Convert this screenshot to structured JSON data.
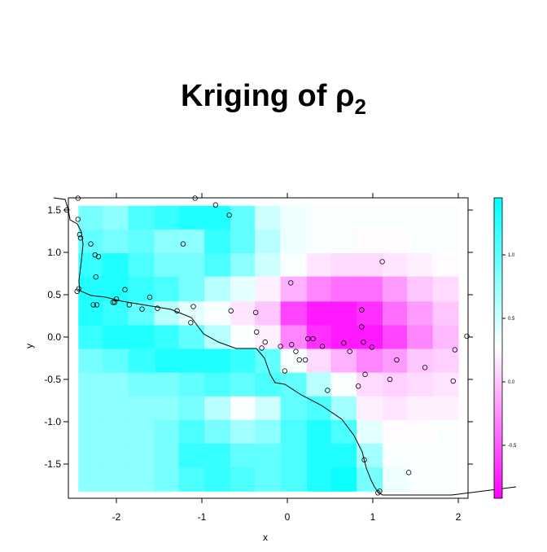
{
  "chart_data": {
    "type": "heatmap",
    "title": "Kriging of ρ",
    "title_subscript": "2",
    "title_color": "#1f45e8",
    "xlabel": "x",
    "ylabel": "y",
    "xlim": [
      -2.562,
      2.114
    ],
    "ylim": [
      -1.904,
      1.644
    ],
    "xticks": [
      -2,
      {
        "value": -1,
        "label": "-1"
      },
      0,
      1,
      2
    ],
    "yticks": [
      -1.5,
      {
        "value": -1,
        "label": "-1.0"
      },
      -0.5,
      {
        "value": 0,
        "label": "0.0"
      },
      0.5,
      {
        "value": 1,
        "label": "1.0"
      },
      1.5
    ],
    "grid": {
      "x": [
        -2.3,
        -2.01,
        -1.71,
        -1.41,
        -1.12,
        -0.82,
        -0.52,
        -0.23,
        0.07,
        0.37,
        0.66,
        0.96,
        1.26,
        1.55,
        1.85
      ],
      "y": [
        1.41,
        1.13,
        0.85,
        0.57,
        0.28,
        0.0,
        -0.28,
        -0.56,
        -0.84,
        -1.12,
        -1.4,
        -1.68
      ],
      "z": [
        [
          0.9,
          0.8,
          1.1,
          1.2,
          1.3,
          1.3,
          1.0,
          0.5,
          0.35,
          0.3,
          0.3,
          0.3,
          0.3,
          0.3,
          0.3
        ],
        [
          1.0,
          0.9,
          1.0,
          0.8,
          0.8,
          1.2,
          1.0,
          0.6,
          0.35,
          0.3,
          0.3,
          0.25,
          0.25,
          0.3,
          0.3
        ],
        [
          1.2,
          1.3,
          1.1,
          0.9,
          0.9,
          1.1,
          0.8,
          0.5,
          0.3,
          0.15,
          0.1,
          0.1,
          0.15,
          0.2,
          0.25
        ],
        [
          1.3,
          1.3,
          1.2,
          1.1,
          0.9,
          0.6,
          0.4,
          0.2,
          -0.1,
          -0.3,
          -0.4,
          -0.4,
          -0.2,
          0.0,
          0.1
        ],
        [
          1.3,
          1.2,
          1.0,
          0.6,
          0.4,
          0.3,
          0.15,
          0.0,
          -0.6,
          -0.8,
          -0.8,
          -0.7,
          -0.4,
          -0.2,
          0.0
        ],
        [
          1.2,
          1.3,
          1.3,
          1.2,
          1.0,
          0.6,
          0.3,
          0.2,
          -0.3,
          -0.7,
          -0.8,
          -0.8,
          -0.6,
          -0.3,
          -0.05
        ],
        [
          0.9,
          1.0,
          1.2,
          1.3,
          1.3,
          1.3,
          1.2,
          1.0,
          0.3,
          0.1,
          -0.1,
          -0.3,
          -0.2,
          0.0,
          0.05
        ],
        [
          0.8,
          0.8,
          0.9,
          0.9,
          1.0,
          1.1,
          1.0,
          1.1,
          1.0,
          0.6,
          0.3,
          0.1,
          0.05,
          0.1,
          0.15
        ],
        [
          0.8,
          0.8,
          0.8,
          0.8,
          0.9,
          0.6,
          0.3,
          0.5,
          1.0,
          1.1,
          0.7,
          0.2,
          0.15,
          0.2,
          0.2
        ],
        [
          0.8,
          0.8,
          0.8,
          0.9,
          1.1,
          0.9,
          0.7,
          0.8,
          1.1,
          1.3,
          1.1,
          0.4,
          0.25,
          0.25,
          0.3
        ],
        [
          0.8,
          0.8,
          0.8,
          0.9,
          1.2,
          1.2,
          1.0,
          1.0,
          1.1,
          1.3,
          1.3,
          0.7,
          0.3,
          0.3,
          0.3
        ],
        [
          0.8,
          0.8,
          0.8,
          0.9,
          1.1,
          1.2,
          1.1,
          1.0,
          1.1,
          1.3,
          1.4,
          0.9,
          0.35,
          0.3,
          0.3
        ]
      ]
    },
    "colorscale": [
      {
        "value": -0.917,
        "color": "#ff00ff"
      },
      {
        "value": 0.27,
        "color": "#ffffff"
      },
      {
        "value": 1.449,
        "color": "#00ffff"
      }
    ],
    "colorbar": {
      "lim": [
        -0.917,
        1.449
      ],
      "ticks": [
        -0.5,
        {
          "value": 0,
          "label": "0.0"
        },
        0.5,
        {
          "value": 1,
          "label": "1.0"
        }
      ]
    },
    "points": {
      "x": [
        -2.45,
        -2.58,
        -2.45,
        -2.43,
        -2.42,
        -2.3,
        -2.25,
        -2.21,
        -2.24,
        -2.44,
        -2.46,
        -2.27,
        -2.23,
        -2.04,
        -2.02,
        -2.0,
        -1.9,
        -1.85,
        -1.7,
        -1.61,
        -1.52,
        -1.29,
        -1.22,
        -1.13,
        -1.1,
        -1.08,
        -0.84,
        -0.68,
        -0.66,
        -0.37,
        -0.36,
        -0.3,
        -0.26,
        -0.08,
        -0.03,
        0.04,
        0.05,
        0.1,
        0.14,
        0.21,
        0.24,
        0.3,
        0.41,
        0.47,
        0.66,
        0.73,
        0.83,
        0.87,
        0.87,
        0.89,
        0.91,
        0.99,
        1.11,
        1.2,
        1.28,
        1.42,
        1.61,
        0.9,
        1.94,
        1.96,
        2.1,
        1.06,
        1.08
      ],
      "y": [
        1.64,
        1.5,
        1.39,
        1.21,
        1.17,
        1.1,
        0.97,
        0.95,
        0.71,
        0.57,
        0.54,
        0.38,
        0.38,
        0.41,
        0.41,
        0.45,
        0.56,
        0.38,
        0.33,
        0.47,
        0.34,
        0.31,
        1.1,
        0.17,
        0.36,
        1.64,
        1.56,
        1.44,
        0.31,
        0.29,
        0.06,
        -0.13,
        -0.06,
        -0.11,
        -0.4,
        0.64,
        -0.09,
        -0.17,
        -0.27,
        -0.27,
        -0.02,
        -0.02,
        -0.11,
        -0.63,
        -0.07,
        -0.17,
        -0.58,
        0.32,
        0.12,
        -0.06,
        -0.44,
        -0.12,
        0.89,
        -0.5,
        -0.27,
        -1.6,
        -0.36,
        -1.45,
        -0.52,
        -0.15,
        0.01,
        -1.84,
        -1.82
      ]
    }
  }
}
